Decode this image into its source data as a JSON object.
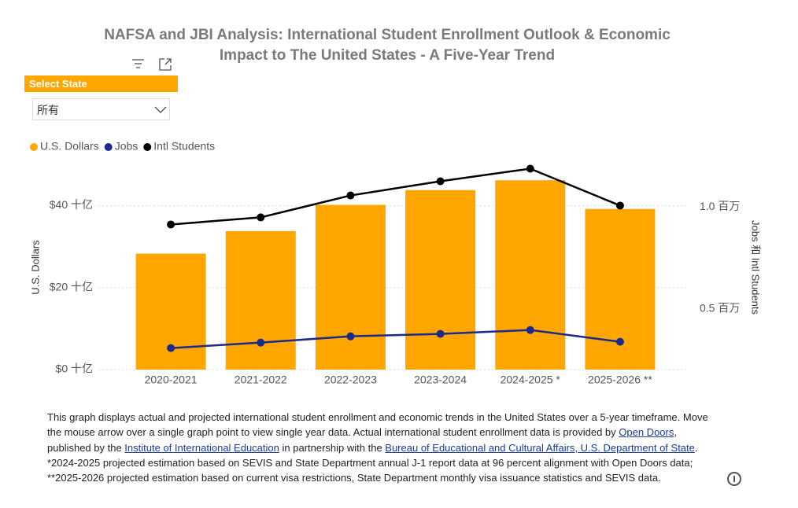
{
  "chart_data": {
    "type": "combo",
    "title": [
      "NAFSA and JBI Analysis: International Student Enrollment Outlook & Economic",
      "Impact to The United States - A Five-Year Trend"
    ],
    "categories": [
      "2020-2021",
      "2021-2022",
      "2022-2023",
      "2023-2024",
      "2024-2025 *",
      "2025-2026 **"
    ],
    "series": [
      {
        "name": "U.S. Dollars",
        "type": "bar",
        "color": "#FFA600",
        "values": [
          28.3,
          33.8,
          40.2,
          43.8,
          46.2,
          39.2
        ]
      },
      {
        "name": "Jobs",
        "type": "line",
        "axis": "y2",
        "color": "#1A2A8C",
        "values": [
          0.306,
          0.333,
          0.364,
          0.376,
          0.395,
          0.337
        ]
      },
      {
        "name": "Intl Students",
        "type": "line",
        "axis": "y2",
        "color": "#000000",
        "values": [
          0.915,
          0.95,
          1.058,
          1.128,
          1.19,
          1.008
        ]
      }
    ],
    "ylabel": "U.S. Dollars",
    "y2label": "Jobs 和 Intl Students",
    "ylim": [
      0,
      52
    ],
    "yticks": [
      {
        "value": 0,
        "label": "$0 十亿"
      },
      {
        "value": 20,
        "label": "$20 十亿"
      },
      {
        "value": 40,
        "label": "$40 十亿"
      }
    ],
    "y2lim": [
      0.2,
      1.25
    ],
    "y2ticks": [
      {
        "value": 0.5,
        "label": "0.5 百万"
      },
      {
        "value": 1,
        "label": "1.0 百万"
      }
    ],
    "grid": true,
    "legend": "top-left"
  },
  "slicer": {
    "title": "Select State",
    "value": "所有"
  },
  "footnote": [
    [
      "This graph displays actual and projected international student enrollment and economic trends in the United States over a 5-year timeframe. Move"
    ],
    [
      "the mouse arrow over a single graph point to view single year data. Actual international student enrollment data is provided by ",
      "Open Doors",
      ","
    ],
    [
      "published by the ",
      "Institute of International Education",
      " in partnership with the ",
      "Bureau of Educational and Cultural Affairs, U.S. Department of State",
      "."
    ],
    [
      "*2024-2025 projected estimation based on SEVIS and State Department annual J-1 report data at 96 percent alignment with Open Doors data;"
    ],
    [
      "**2025-2026 projected estimation based on current visa restrictions, State Department monthly visa issuance statistics and SEVIS data."
    ]
  ]
}
